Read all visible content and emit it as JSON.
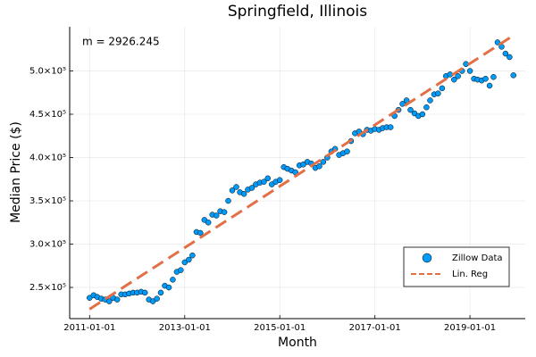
{
  "chart_data": {
    "type": "scatter",
    "title": "Springfield, Illinois",
    "xlabel": "Month",
    "ylabel": "Median Price ($)",
    "annotation": "m = 2926.245",
    "grid": true,
    "legend": "lower right",
    "xlim": [
      "2010-08-01",
      "2020-03-01"
    ],
    "xticks": [
      "2011-01-01",
      "2013-01-01",
      "2015-01-01",
      "2017-01-01",
      "2019-01-01"
    ],
    "ylim": [
      214000,
      551000
    ],
    "yticks": [
      {
        "value": 250000,
        "label": "2.5×10⁵"
      },
      {
        "value": 300000,
        "label": "3.0×10⁵"
      },
      {
        "value": 350000,
        "label": "3.5×10⁵"
      },
      {
        "value": 400000,
        "label": "4.0×10⁵"
      },
      {
        "value": 450000,
        "label": "4.5×10⁵"
      },
      {
        "value": 500000,
        "label": "5.0×10⁵"
      }
    ],
    "series": [
      {
        "name": "Zillow Data",
        "type": "scatter",
        "color": "#009af9",
        "x": [
          "2011-01-01",
          "2011-02-01",
          "2011-03-01",
          "2011-04-01",
          "2011-05-01",
          "2011-06-01",
          "2011-07-01",
          "2011-08-01",
          "2011-09-01",
          "2011-10-01",
          "2011-11-01",
          "2011-12-01",
          "2012-01-01",
          "2012-02-01",
          "2012-03-01",
          "2012-04-01",
          "2012-05-01",
          "2012-06-01",
          "2012-07-01",
          "2012-08-01",
          "2012-09-01",
          "2012-10-01",
          "2012-11-01",
          "2012-12-01",
          "2013-01-01",
          "2013-02-01",
          "2013-03-01",
          "2013-04-01",
          "2013-05-01",
          "2013-06-01",
          "2013-07-01",
          "2013-08-01",
          "2013-09-01",
          "2013-10-01",
          "2013-11-01",
          "2013-12-01",
          "2014-01-01",
          "2014-02-01",
          "2014-03-01",
          "2014-04-01",
          "2014-05-01",
          "2014-06-01",
          "2014-07-01",
          "2014-08-01",
          "2014-09-01",
          "2014-10-01",
          "2014-11-01",
          "2014-12-01",
          "2015-01-01",
          "2015-02-01",
          "2015-03-01",
          "2015-04-01",
          "2015-05-01",
          "2015-06-01",
          "2015-07-01",
          "2015-08-01",
          "2015-09-01",
          "2015-10-01",
          "2015-11-01",
          "2015-12-01",
          "2016-01-01",
          "2016-02-01",
          "2016-03-01",
          "2016-04-01",
          "2016-05-01",
          "2016-06-01",
          "2016-07-01",
          "2016-08-01",
          "2016-09-01",
          "2016-10-01",
          "2016-11-01",
          "2016-12-01",
          "2017-01-01",
          "2017-02-01",
          "2017-03-01",
          "2017-04-01",
          "2017-05-01",
          "2017-06-01",
          "2017-07-01",
          "2017-08-01",
          "2017-09-01",
          "2017-10-01",
          "2017-11-01",
          "2017-12-01",
          "2018-01-01",
          "2018-02-01",
          "2018-03-01",
          "2018-04-01",
          "2018-05-01",
          "2018-06-01",
          "2018-07-01",
          "2018-08-01",
          "2018-09-01",
          "2018-10-01",
          "2018-11-01",
          "2018-12-01",
          "2019-01-01",
          "2019-02-01",
          "2019-03-01",
          "2019-04-01",
          "2019-05-01",
          "2019-06-01",
          "2019-07-01",
          "2019-08-01",
          "2019-09-01",
          "2019-10-01",
          "2019-11-01",
          "2019-12-01"
        ],
        "values": [
          238000,
          241000,
          239000,
          237000,
          236000,
          234000,
          238000,
          236000,
          242000,
          242000,
          243000,
          244000,
          244000,
          245000,
          244000,
          236000,
          234000,
          237000,
          244000,
          252000,
          250000,
          259000,
          268000,
          270000,
          279000,
          282000,
          287000,
          314000,
          313000,
          328000,
          325000,
          334000,
          333000,
          338000,
          337000,
          350000,
          362000,
          366000,
          360000,
          358000,
          363000,
          365000,
          369000,
          371000,
          372000,
          376000,
          369000,
          372000,
          374000,
          389000,
          387000,
          385000,
          383000,
          391000,
          392000,
          395000,
          393000,
          388000,
          390000,
          395000,
          400000,
          407000,
          410000,
          403000,
          405000,
          407000,
          419000,
          428000,
          430000,
          427000,
          432000,
          431000,
          433000,
          432000,
          434000,
          435000,
          435000,
          448000,
          455000,
          462000,
          466000,
          455000,
          451000,
          448000,
          450000,
          458000,
          466000,
          473000,
          474000,
          480000,
          494000,
          496000,
          490000,
          494000,
          500000,
          508000,
          500000,
          491000,
          490000,
          489000,
          491000,
          483000,
          493000,
          533000,
          528000,
          520000,
          516000,
          495000
        ]
      },
      {
        "name": "Lin. Reg",
        "type": "line",
        "color": "#e26f46",
        "x": [
          "2011-01-01",
          "2019-12-01"
        ],
        "values": [
          225000,
          541000
        ]
      }
    ]
  }
}
